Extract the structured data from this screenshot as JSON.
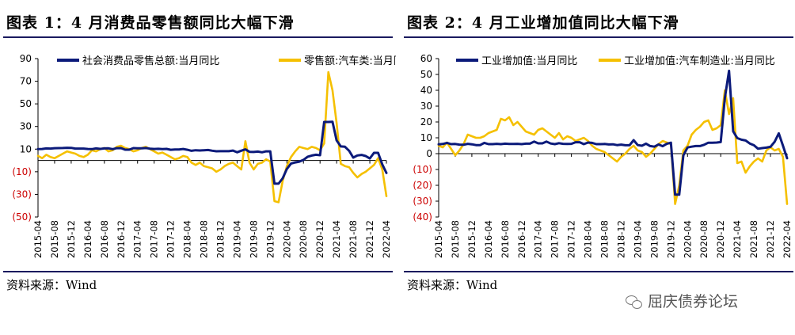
{
  "watermark": "屈庆债券论坛",
  "colors": {
    "navy": "#0b1a7a",
    "gold": "#f5c000",
    "negative_tick": "#cc0000",
    "rule": "#1a1a5e"
  },
  "x_dates": [
    "2015-04",
    "2015-05",
    "2015-06",
    "2015-07",
    "2015-08",
    "2015-09",
    "2015-10",
    "2015-11",
    "2015-12",
    "2016-01",
    "2016-02",
    "2016-03",
    "2016-04",
    "2016-05",
    "2016-06",
    "2016-07",
    "2016-08",
    "2016-09",
    "2016-10",
    "2016-11",
    "2016-12",
    "2017-01",
    "2017-02",
    "2017-03",
    "2017-04",
    "2017-05",
    "2017-06",
    "2017-07",
    "2017-08",
    "2017-09",
    "2017-10",
    "2017-11",
    "2017-12",
    "2018-01",
    "2018-02",
    "2018-03",
    "2018-04",
    "2018-05",
    "2018-06",
    "2018-07",
    "2018-08",
    "2018-09",
    "2018-10",
    "2018-11",
    "2018-12",
    "2019-01",
    "2019-02",
    "2019-03",
    "2019-04",
    "2019-05",
    "2019-06",
    "2019-07",
    "2019-08",
    "2019-09",
    "2019-10",
    "2019-11",
    "2019-12",
    "2020-01",
    "2020-02",
    "2020-03",
    "2020-04",
    "2020-05",
    "2020-06",
    "2020-07",
    "2020-08",
    "2020-09",
    "2020-10",
    "2020-11",
    "2020-12",
    "2021-01",
    "2021-02",
    "2021-03",
    "2021-04",
    "2021-05",
    "2021-06",
    "2021-07",
    "2021-08",
    "2021-09",
    "2021-10",
    "2021-11",
    "2021-12",
    "2022-01",
    "2022-02",
    "2022-03",
    "2022-04"
  ],
  "chart_data": [
    {
      "type": "line",
      "title": "图表 1：4 月消费品零售额同比大幅下滑",
      "source": "资料来源：Wind",
      "x_tick_labels": [
        "2015-04",
        "2015-08",
        "2015-12",
        "2016-04",
        "2016-08",
        "2016-12",
        "2017-04",
        "2017-08",
        "2017-12",
        "2018-04",
        "2018-08",
        "2018-12",
        "2019-04",
        "2019-08",
        "2019-12",
        "2020-04",
        "2020-08",
        "2020-12",
        "2021-04",
        "2021-08",
        "2021-12",
        "2022-04"
      ],
      "y_ticks": [
        "90",
        "70",
        "50",
        "30",
        "10",
        "(10)",
        "(30)",
        "(50)"
      ],
      "ylim": [
        -50,
        90
      ],
      "legend_position": "top",
      "grid": false,
      "series": [
        {
          "name": "社会消费品零售总额:当月同比",
          "color": "#0b1a7a",
          "values": [
            10.0,
            10.1,
            10.6,
            10.5,
            10.8,
            10.9,
            11.0,
            11.2,
            11.1,
            10.5,
            10.5,
            10.5,
            10.1,
            10.0,
            10.6,
            10.2,
            10.6,
            10.7,
            10.0,
            10.8,
            10.9,
            9.5,
            9.5,
            10.9,
            10.7,
            10.7,
            11.0,
            10.4,
            10.1,
            10.3,
            10.0,
            10.2,
            9.4,
            9.7,
            9.7,
            10.1,
            9.4,
            8.5,
            9.0,
            8.8,
            9.0,
            9.2,
            8.6,
            8.1,
            8.2,
            8.2,
            8.2,
            8.7,
            7.2,
            8.6,
            9.8,
            7.6,
            7.5,
            7.8,
            7.2,
            8.0,
            8.0,
            -20.5,
            -20.5,
            -15.8,
            -7.5,
            -2.8,
            -1.8,
            -1.1,
            0.5,
            3.3,
            4.3,
            5.0,
            4.6,
            34.0,
            34.0,
            34.2,
            17.7,
            12.4,
            12.1,
            8.5,
            2.5,
            4.4,
            4.9,
            3.9,
            1.7,
            6.7,
            6.7,
            -3.5,
            -11.1
          ]
        },
        {
          "name": "零售额:汽车类:当月同比",
          "color": "#f5c000",
          "values": [
            4,
            2,
            5,
            3,
            2,
            4,
            6,
            8,
            7,
            6,
            4,
            3,
            5,
            9,
            8,
            10,
            11,
            8,
            9,
            12,
            13,
            11,
            10,
            8,
            9,
            11,
            12,
            10,
            8,
            6,
            7,
            5,
            3,
            1,
            2,
            4,
            3,
            -2,
            -4,
            -2,
            -5,
            -6,
            -7,
            -10,
            -8,
            -5,
            -3,
            -2,
            -5,
            -8,
            17,
            -2,
            -8,
            -3,
            -2,
            1,
            -1,
            -36,
            -37,
            -18.1,
            -5,
            3,
            8,
            12,
            11,
            10,
            12,
            11,
            9,
            15,
            78,
            62,
            33,
            -3,
            -5,
            -6,
            -11,
            -15,
            -12,
            -10,
            -7,
            -4,
            2,
            -8,
            -31.6
          ]
        }
      ]
    },
    {
      "type": "line",
      "title": "图表 2：4 月工业增加值同比大幅下滑",
      "source": "资料来源：Wind",
      "x_tick_labels": [
        "2015-04",
        "2015-08",
        "2015-12",
        "2016-04",
        "2016-08",
        "2016-12",
        "2017-04",
        "2017-08",
        "2017-12",
        "2018-04",
        "2018-08",
        "2018-12",
        "2019-04",
        "2019-08",
        "2019-12",
        "2020-04",
        "2020-08",
        "2020-12",
        "2021-04",
        "2021-08",
        "2021-12",
        "2022-04"
      ],
      "y_ticks": [
        "60",
        "50",
        "40",
        "30",
        "20",
        "10",
        "0",
        "(10)",
        "(20)",
        "(30)",
        "(40)"
      ],
      "ylim": [
        -40,
        60
      ],
      "legend_position": "top",
      "grid": false,
      "series": [
        {
          "name": "工业增加值:当月同比",
          "color": "#0b1a7a",
          "values": [
            5.9,
            6.1,
            6.8,
            6.0,
            6.1,
            5.7,
            5.6,
            6.2,
            5.9,
            5.4,
            5.4,
            6.8,
            6.0,
            6.0,
            6.2,
            6.0,
            6.3,
            6.1,
            6.1,
            6.2,
            6.0,
            6.3,
            6.3,
            7.6,
            6.5,
            6.5,
            7.6,
            6.4,
            6.0,
            6.6,
            6.2,
            6.1,
            6.2,
            7.2,
            7.2,
            6.0,
            7.0,
            6.8,
            6.0,
            6.0,
            6.1,
            5.8,
            5.9,
            5.4,
            5.7,
            5.3,
            5.3,
            8.5,
            5.4,
            5.0,
            6.3,
            4.8,
            4.4,
            5.8,
            4.7,
            6.2,
            6.9,
            -25.9,
            -25.9,
            -1.1,
            3.9,
            4.4,
            4.8,
            4.8,
            5.6,
            6.9,
            6.9,
            7.0,
            7.3,
            35.1,
            52.3,
            14.1,
            9.8,
            8.8,
            8.3,
            6.4,
            5.3,
            3.1,
            3.5,
            3.8,
            4.3,
            7.5,
            12.8,
            5.0,
            -2.9
          ]
        },
        {
          "name": "工业增加值:汽车制造业:当月同比",
          "color": "#f5c000",
          "values": [
            5,
            4,
            7,
            3,
            -1,
            2,
            6,
            12,
            11,
            10,
            10,
            11,
            13,
            14,
            15,
            22,
            21,
            23,
            18,
            20,
            17,
            14,
            13,
            12,
            15,
            16,
            14,
            12,
            10,
            13,
            9,
            11,
            10,
            8,
            9,
            10,
            8,
            5,
            3,
            2,
            1,
            -1,
            -3,
            -5,
            -2,
            0,
            3,
            5,
            2,
            1,
            -2,
            0,
            3,
            6,
            8,
            7,
            6,
            -31.8,
            -20,
            2,
            5,
            12,
            15,
            17,
            20,
            21,
            15,
            16,
            18,
            40,
            25,
            35,
            -6,
            -5,
            -12,
            -8,
            -5,
            -3,
            -5,
            2,
            4,
            2,
            3,
            -2,
            -31.8
          ]
        }
      ]
    }
  ]
}
